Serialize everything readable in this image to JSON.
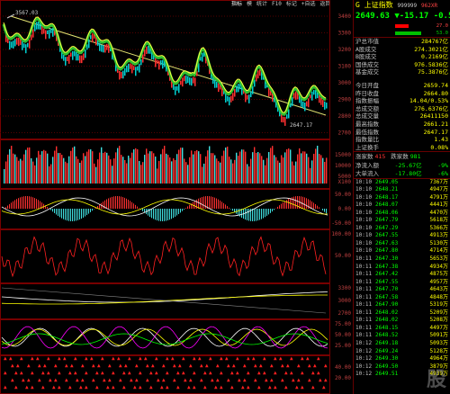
{
  "menu": [
    "指标",
    "模",
    "统计",
    "F10",
    "标记",
    "+自选",
    "返回"
  ],
  "security": {
    "prefix": "G",
    "name": "上证指数",
    "code": "999999",
    "flag": "962XR"
  },
  "quote": {
    "price": "2649.63",
    "arrow": "▼",
    "change": "-15.17",
    "pct": "-0.57%"
  },
  "bars": [
    {
      "value": "27.0",
      "color": "#ff0000"
    },
    {
      "value": "53.0",
      "color": "#00c000"
    }
  ],
  "stats": [
    {
      "k": "沪总市值",
      "v": "284767亿"
    },
    {
      "k": "A股成交",
      "v": "274.3021亿"
    },
    {
      "k": "B股成交",
      "v": "0.2169亿"
    },
    {
      "k": "国债成交",
      "v": "976.5836亿"
    },
    {
      "k": "基金成交",
      "v": "75.3876亿"
    },
    {
      "k": "今日开盘",
      "v": "2659.74"
    },
    {
      "k": "昨日收盘",
      "v": "2664.80"
    },
    {
      "k": "指数振幅",
      "v": "14.04/0.53%"
    },
    {
      "k": "总成交额",
      "v": "276.6376亿"
    },
    {
      "k": "总成交量",
      "v": "26411150"
    },
    {
      "k": "最高指数",
      "v": "2661.21"
    },
    {
      "k": "最低指数",
      "v": "2647.17"
    },
    {
      "k": "指数量比",
      "v": "1.43"
    },
    {
      "k": "上证换手",
      "v": "0.08%"
    }
  ],
  "updown": {
    "up_label": "涨家数",
    "up": "415",
    "down_label": "跌家数",
    "down": "981"
  },
  "flows": [
    {
      "k": "净流入额",
      "v": "-25.67亿",
      "pct": "-9%"
    },
    {
      "k": "大单流入",
      "v": "-17.80亿",
      "pct": "-6%"
    }
  ],
  "ticks": [
    {
      "t": "10:10",
      "p": "2649.05",
      "v": "7367万"
    },
    {
      "t": "10:10",
      "p": "2648.21",
      "v": "4947万"
    },
    {
      "t": "10:10",
      "p": "2648.17",
      "v": "4791万"
    },
    {
      "t": "10:10",
      "p": "2648.07",
      "v": "4441万"
    },
    {
      "t": "10:10",
      "p": "2648.06",
      "v": "4470万"
    },
    {
      "t": "10:10",
      "p": "2647.79",
      "v": "5618万"
    },
    {
      "t": "10:10",
      "p": "2647.29",
      "v": "5366万"
    },
    {
      "t": "10:10",
      "p": "2647.55",
      "v": "4913万"
    },
    {
      "t": "10:10",
      "p": "2647.63",
      "v": "5130万"
    },
    {
      "t": "10:10",
      "p": "2647.80",
      "v": "4714万"
    },
    {
      "t": "10:11",
      "p": "2647.30",
      "v": "5653万"
    },
    {
      "t": "10:11",
      "p": "2647.38",
      "v": "4934万"
    },
    {
      "t": "10:11",
      "p": "2647.42",
      "v": "4875万"
    },
    {
      "t": "10:11",
      "p": "2647.55",
      "v": "4957万"
    },
    {
      "t": "10:11",
      "p": "2647.70",
      "v": "4643万"
    },
    {
      "t": "10:11",
      "p": "2647.58",
      "v": "4848万"
    },
    {
      "t": "10:11",
      "p": "2647.90",
      "v": "5319万"
    },
    {
      "t": "10:11",
      "p": "2648.02",
      "v": "5209万"
    },
    {
      "t": "10:11",
      "p": "2648.02",
      "v": "5208万"
    },
    {
      "t": "10:11",
      "p": "2648.15",
      "v": "4497万"
    },
    {
      "t": "10:11",
      "p": "2648.52",
      "v": "5091万"
    },
    {
      "t": "10:12",
      "p": "2649.18",
      "v": "5093万"
    },
    {
      "t": "10:12",
      "p": "2649.24",
      "v": "5128万"
    },
    {
      "t": "10:12",
      "p": "2649.30",
      "v": "4964万"
    },
    {
      "t": "10:12",
      "p": "2649.50",
      "v": "3879万"
    },
    {
      "t": "10:12",
      "p": "2649.51",
      "v": "4939万"
    }
  ],
  "price_axis": [
    "3400",
    "3300",
    "3200",
    "3100",
    "3000",
    "2900",
    "2800",
    "2700"
  ],
  "vol_axis": [
    "15000",
    "10000",
    "5000"
  ],
  "macd_axis": [
    "50.00",
    "0.00",
    "-50.00"
  ],
  "rsi_axis": [
    "100.00",
    "50.00"
  ],
  "ma_axis": [
    "3300",
    "3000",
    "2700"
  ],
  "kdj_axis": [
    "75.00",
    "50.00",
    "25.00"
  ],
  "bot_axis": [
    "40.00",
    "20.00"
  ],
  "hi_label": "3567.03",
  "lo_label": "2647.17",
  "vol_unit": "X100",
  "watermark": "股"
}
